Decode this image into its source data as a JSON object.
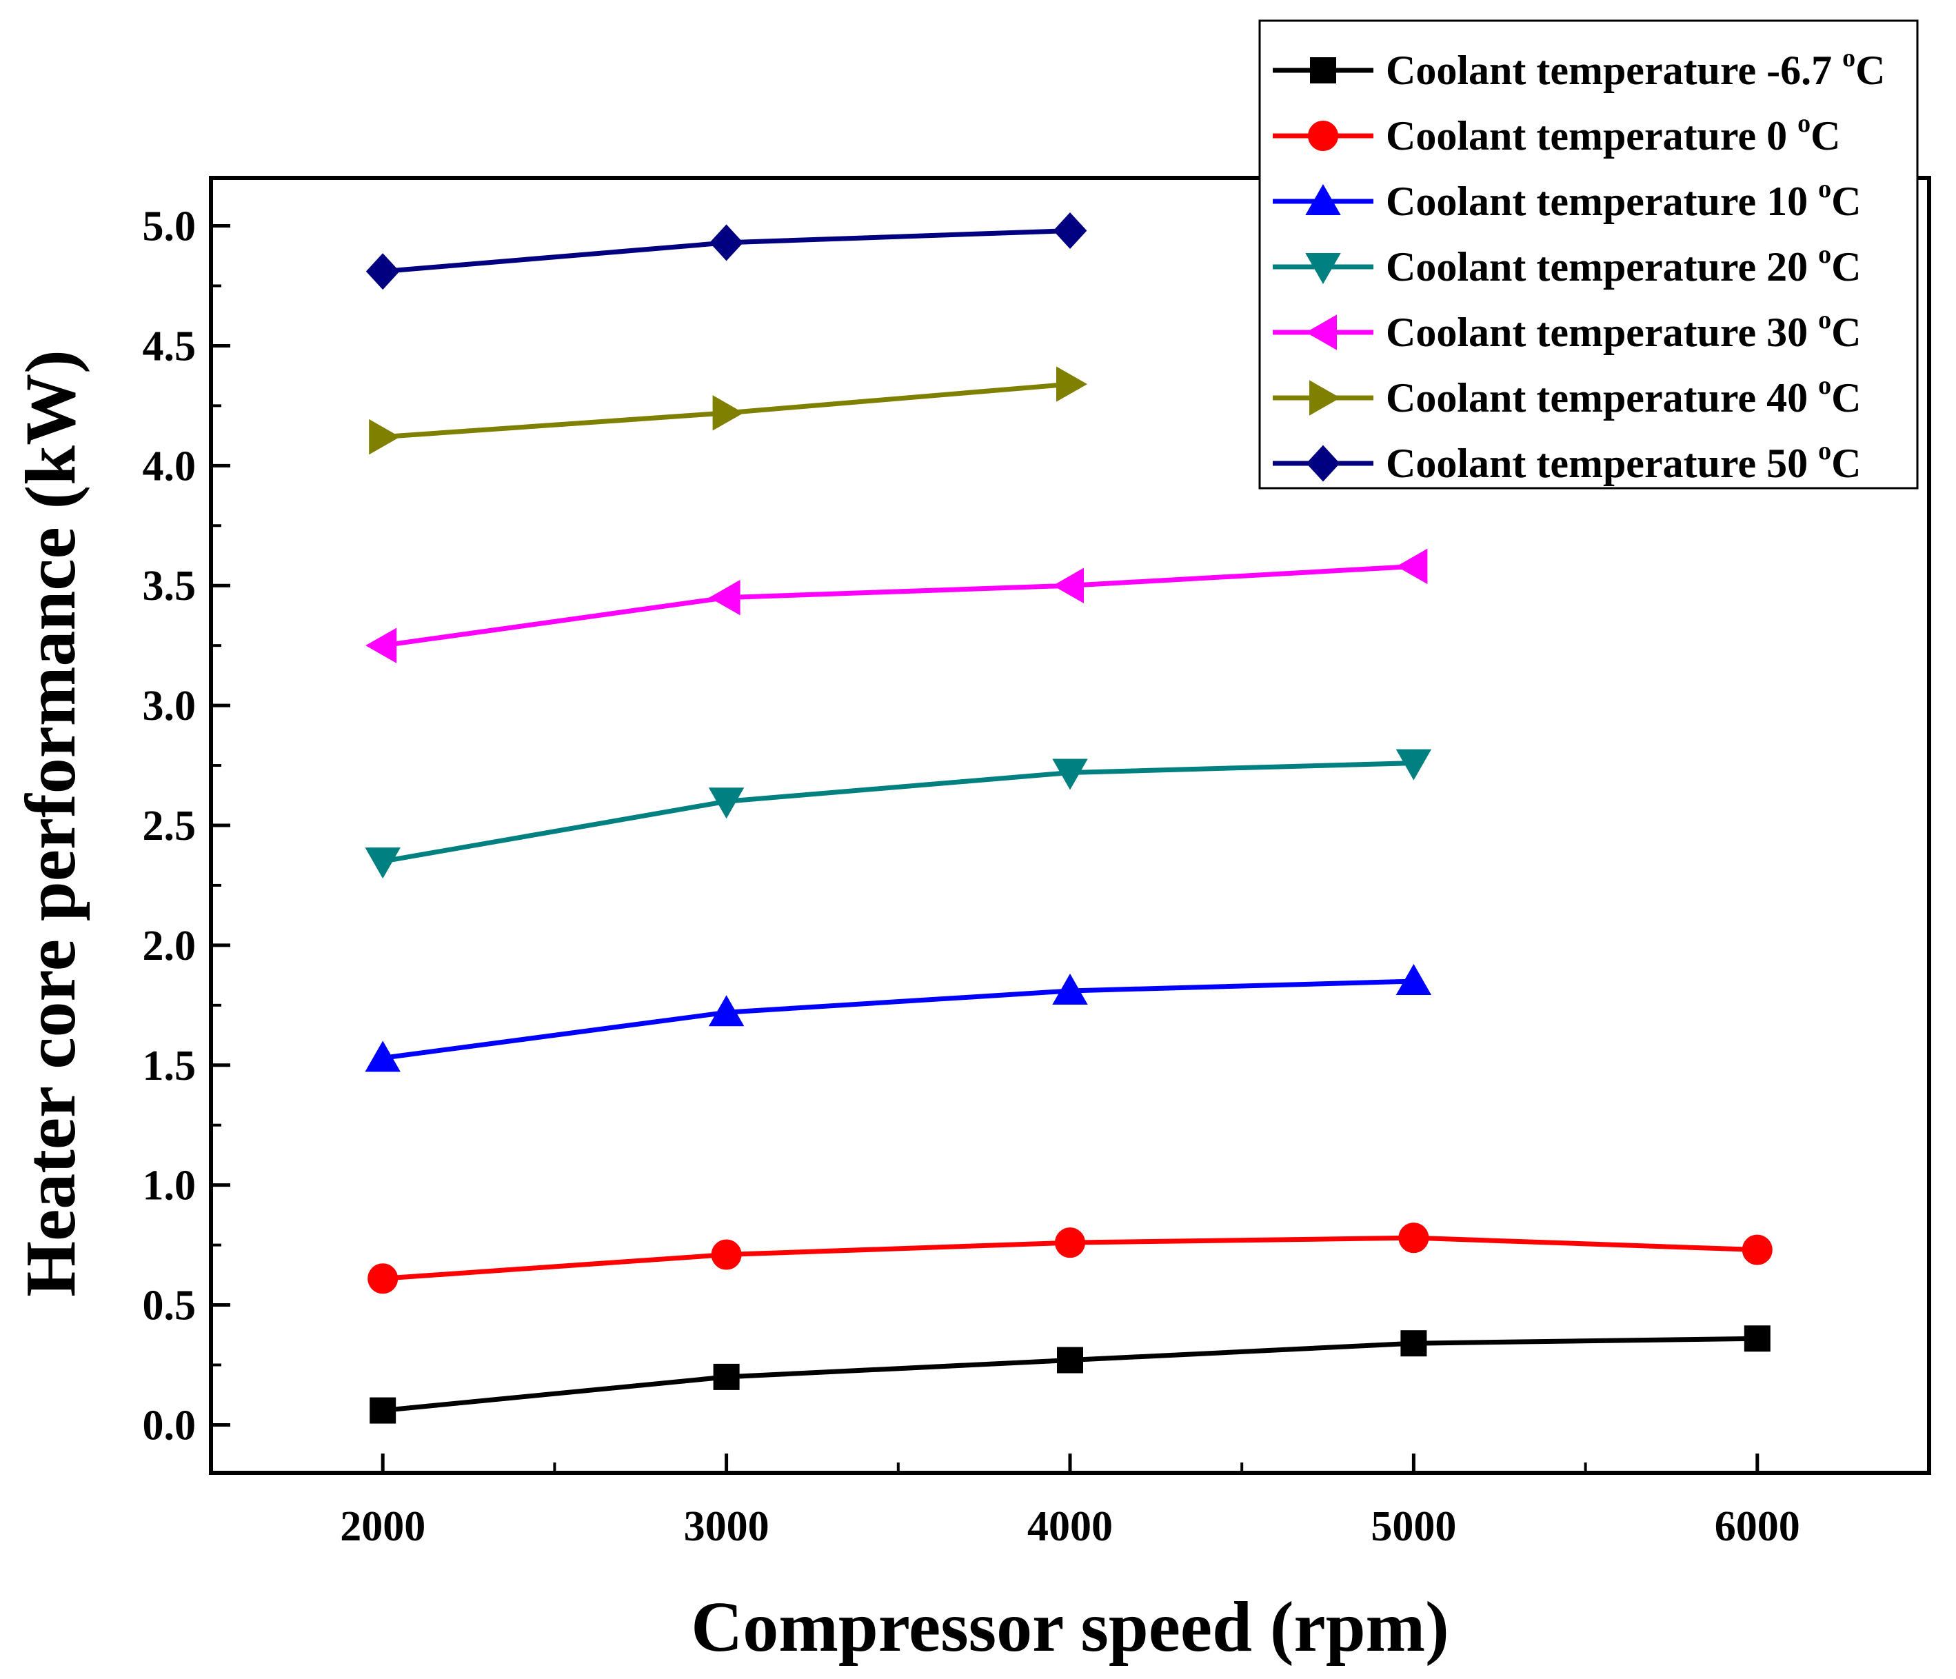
{
  "chart_data": {
    "type": "line",
    "xlabel": "Compressor speed (rpm)",
    "ylabel": "Heater core performance (kW)",
    "xlim": [
      1500,
      6500
    ],
    "ylim": [
      -0.2,
      5.2
    ],
    "xticks": [
      2000,
      3000,
      4000,
      5000,
      6000
    ],
    "xtick_labels": [
      "2000",
      "3000",
      "4000",
      "5000",
      "6000"
    ],
    "yticks": [
      0.0,
      0.5,
      1.0,
      1.5,
      2.0,
      2.5,
      3.0,
      3.5,
      4.0,
      4.5,
      5.0
    ],
    "ytick_labels": [
      "0.0",
      "0.5",
      "1.0",
      "1.5",
      "2.0",
      "2.5",
      "3.0",
      "3.5",
      "4.0",
      "4.5",
      "5.0"
    ],
    "legend_position": "top-right",
    "series": [
      {
        "name": "Coolant temperature -6.7",
        "unit": "oC",
        "color": "#000000",
        "marker": "square",
        "x": [
          2000,
          3000,
          4000,
          5000,
          6000
        ],
        "values": [
          0.06,
          0.2,
          0.27,
          0.34,
          0.36
        ]
      },
      {
        "name": "Coolant temperature 0",
        "unit": "oC",
        "color": "#ff0000",
        "marker": "circle",
        "x": [
          2000,
          3000,
          4000,
          5000,
          6000
        ],
        "values": [
          0.61,
          0.71,
          0.76,
          0.78,
          0.73
        ]
      },
      {
        "name": "Coolant temperature 10",
        "unit": "oC",
        "color": "#0000ff",
        "marker": "triangle-up",
        "x": [
          2000,
          3000,
          4000,
          5000
        ],
        "values": [
          1.53,
          1.72,
          1.81,
          1.85
        ]
      },
      {
        "name": "Coolant temperature 20",
        "unit": "oC",
        "color": "#008080",
        "marker": "triangle-down",
        "x": [
          2000,
          3000,
          4000,
          5000
        ],
        "values": [
          2.35,
          2.6,
          2.72,
          2.76
        ]
      },
      {
        "name": "Coolant temperature 30",
        "unit": "oC",
        "color": "#ff00ff",
        "marker": "triangle-left",
        "x": [
          2000,
          3000,
          4000,
          5000
        ],
        "values": [
          3.25,
          3.45,
          3.5,
          3.58
        ]
      },
      {
        "name": "Coolant temperature 40",
        "unit": "oC",
        "color": "#808000",
        "marker": "triangle-right",
        "x": [
          2000,
          3000,
          4000
        ],
        "values": [
          4.12,
          4.22,
          4.34
        ]
      },
      {
        "name": "Coolant temperature 50",
        "unit": "oC",
        "color": "#000080",
        "marker": "diamond",
        "x": [
          2000,
          3000,
          4000
        ],
        "values": [
          4.81,
          4.93,
          4.98
        ]
      }
    ]
  }
}
